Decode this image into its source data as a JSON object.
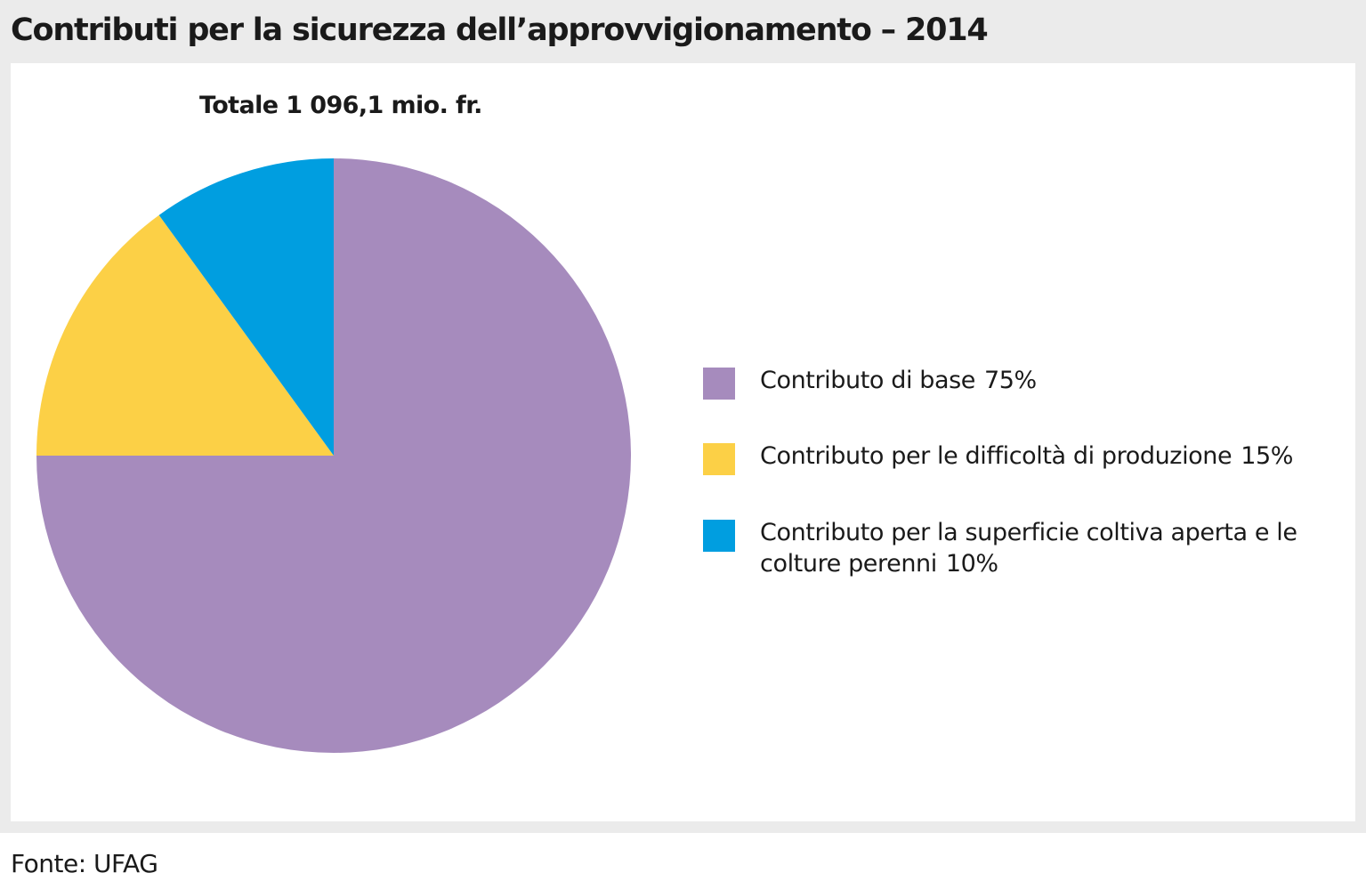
{
  "title": "Contributi per la sicurezza dell’approvvigionamento – 2014",
  "source": "Fonte: UFAG",
  "chart_data": {
    "type": "pie",
    "subtitle": "Totale 1 096,1 mio. fr.",
    "slices": [
      {
        "label": "Contributo di base",
        "value": 75,
        "display": "75%",
        "color": "#a68bbd"
      },
      {
        "label": "Contributo per le difficoltà di produzione",
        "value": 15,
        "display": "15%",
        "color": "#fcd046"
      },
      {
        "label": "Contributo per la superficie coltiva aperta e le colture perenni",
        "value": 10,
        "display": "10%",
        "color": "#009ee0"
      }
    ],
    "legend_position": "right",
    "start": "top",
    "direction": "clockwise"
  }
}
